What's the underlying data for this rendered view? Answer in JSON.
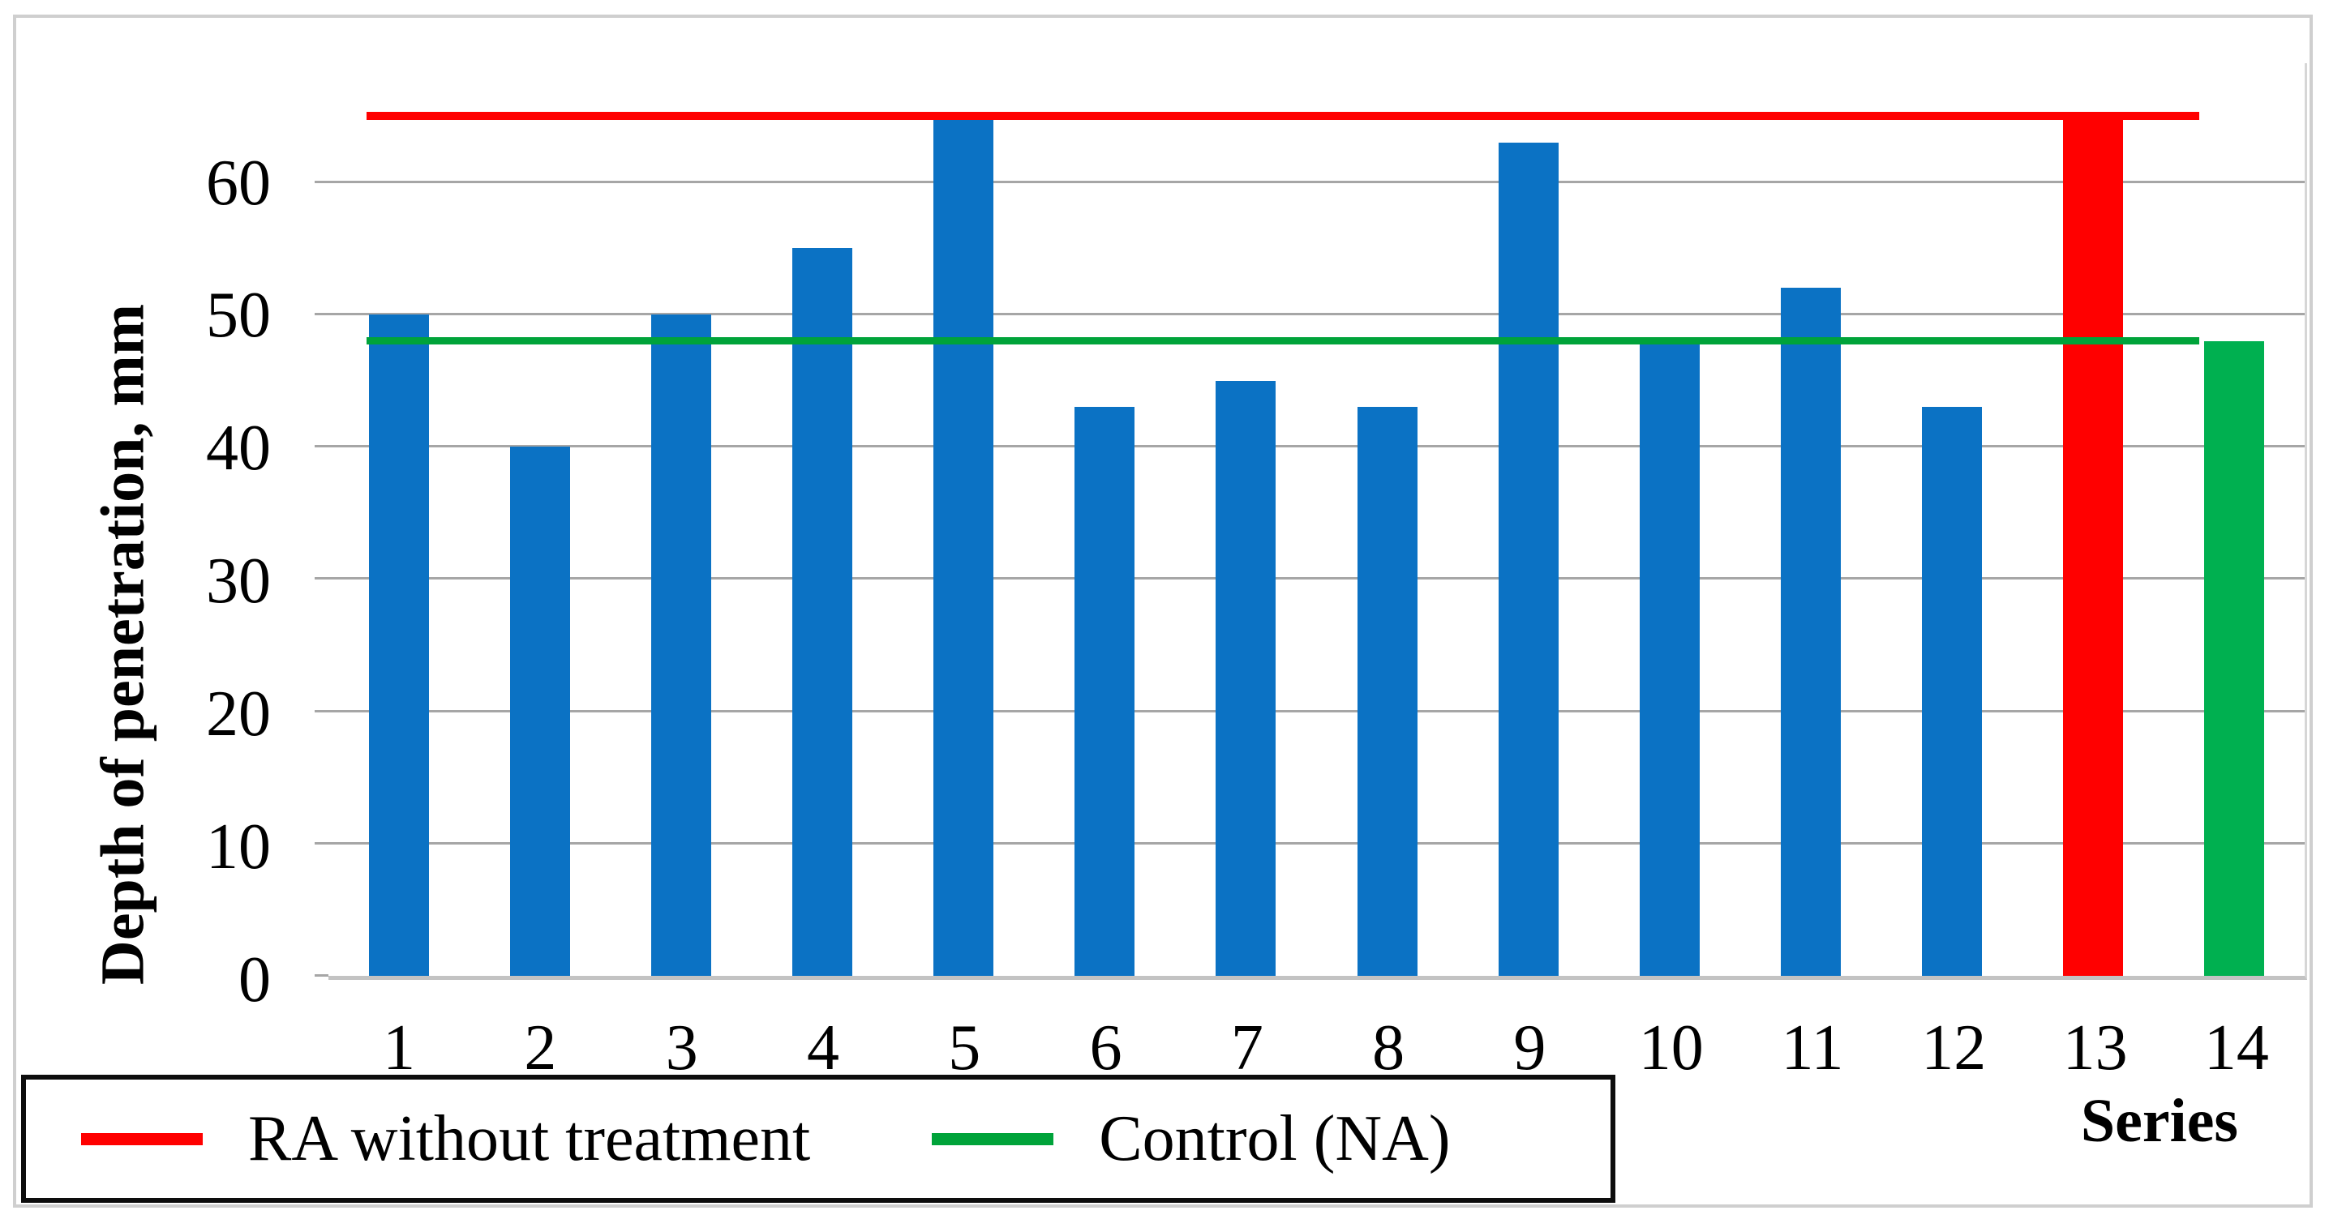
{
  "chart_data": {
    "type": "bar",
    "title": "",
    "xlabel": "Series",
    "ylabel": "Depth of penetration, mm",
    "categories": [
      "1",
      "2",
      "3",
      "4",
      "5",
      "6",
      "7",
      "8",
      "9",
      "10",
      "11",
      "12",
      "13",
      "14"
    ],
    "values": [
      50,
      40,
      50,
      55,
      65,
      43,
      45,
      43,
      63,
      48,
      52,
      43,
      65,
      48
    ],
    "bar_colors": [
      "#0b72c4",
      "#0b72c4",
      "#0b72c4",
      "#0b72c4",
      "#0b72c4",
      "#0b72c4",
      "#0b72c4",
      "#0b72c4",
      "#0b72c4",
      "#0b72c4",
      "#0b72c4",
      "#0b72c4",
      "#ff0000",
      "#00b050"
    ],
    "ylim": [
      0,
      69
    ],
    "yticks": [
      0,
      10,
      20,
      30,
      40,
      50,
      60
    ],
    "grid": true,
    "legend_position": "bottom-left",
    "reference_lines": [
      {
        "label": "RA without treatment",
        "value": 65,
        "color": "#ff0000",
        "thickness": 10
      },
      {
        "label": "Control (NA)",
        "value": 48,
        "color": "#00a33a",
        "thickness": 9
      }
    ]
  },
  "legend": {
    "items": [
      {
        "label": "RA without treatment",
        "color": "#ff0000"
      },
      {
        "label": "Control (NA)",
        "color": "#00a33a"
      }
    ]
  },
  "colors": {
    "bar_default": "#0b72c4",
    "bar_red": "#ff0000",
    "bar_green": "#00b050",
    "gridline": "#a6a6a6",
    "axis_line": "#c3c3c3",
    "figure_border": "#cfcfcf",
    "legend_border": "#0d0d0d",
    "text": "#000000"
  }
}
